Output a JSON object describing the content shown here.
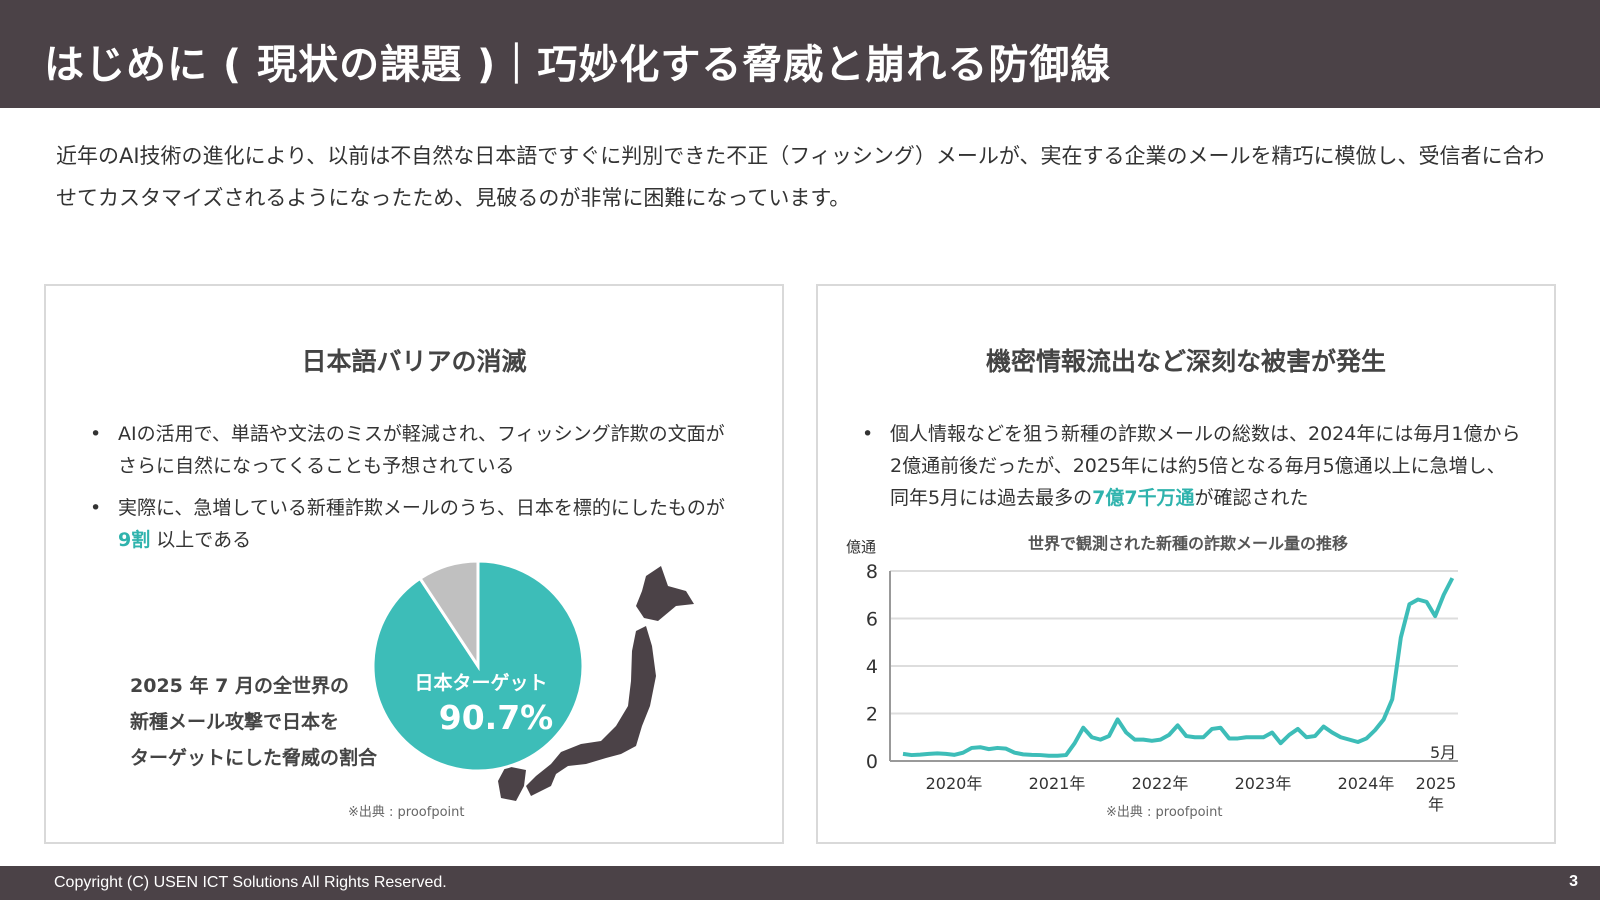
{
  "header": {
    "title": "はじめに ( 現状の課題 )｜巧妙化する脅威と崩れる防御線"
  },
  "intro": "近年のAI技術の進化により、以前は不自然な日本語ですぐに判別できた不正（フィッシング）メールが、実在する企業のメールを精巧に模倣し、受信者に合わせてカスタマイズされるようになったため、見破るのが非常に困難になっています。",
  "left": {
    "title": "日本語バリアの消滅",
    "bullet1": "AIの活用で、単語や文法のミスが軽減され、フィッシング詐欺の文面がさらに自然になってくることも予想されている",
    "bullet2_pre": "実際に、急増している新種詐欺メールのうち、日本を標的にしたものが ",
    "bullet2_hl": "9割",
    "bullet2_post": " 以上である",
    "caption": [
      "2025 年 7 月の全世界の",
      "新種メール攻撃で日本を",
      "ターゲットにした脅威の割合"
    ],
    "source": "※出典 : proofpoint"
  },
  "right": {
    "title": "機密情報流出など深刻な被害が発生",
    "bullet_pre": "個人情報などを狙う新種の詐欺メールの総数は、2024年には毎月1億から2億通前後だったが、2025年には約5倍となる毎月5億通以上に急増し、同年5月には過去最多の",
    "bullet_hl": "7億7千万通",
    "bullet_post": "が確認された",
    "source": "※出典 : proofpoint"
  },
  "colors": {
    "header": "#4b4247",
    "accent": "#3dbdb8",
    "other": "#c0c0c0",
    "map": "#4b4247"
  },
  "chart_data": [
    {
      "type": "pie",
      "slices": [
        {
          "label": "日本ターゲット",
          "value": 90.7,
          "display": "90.7%"
        },
        {
          "label": "",
          "value": 9.3
        }
      ]
    },
    {
      "type": "line",
      "title": "世界で観測された新種の詐欺メール量の推移",
      "ylabel": "億通",
      "ylim": [
        0,
        8
      ],
      "yticks": [
        "0",
        "2",
        "4",
        "6",
        "8"
      ],
      "xticks": [
        "2020年",
        "2021年",
        "2022年",
        "2023年",
        "2024年",
        "2025年"
      ],
      "annotation": "5月",
      "grid": true,
      "x_start": "2020-01",
      "x_end": "2025-05",
      "values": [
        0.3,
        0.25,
        0.27,
        0.3,
        0.32,
        0.3,
        0.26,
        0.35,
        0.55,
        0.58,
        0.5,
        0.55,
        0.52,
        0.35,
        0.28,
        0.26,
        0.25,
        0.22,
        0.22,
        0.25,
        0.75,
        1.4,
        1.0,
        0.9,
        1.05,
        1.75,
        1.2,
        0.9,
        0.9,
        0.85,
        0.9,
        1.1,
        1.5,
        1.05,
        1.0,
        1.0,
        1.35,
        1.4,
        0.95,
        0.95,
        1.0,
        1.0,
        1.0,
        1.2,
        0.75,
        1.1,
        1.35,
        1.0,
        1.05,
        1.45,
        1.2,
        1.0,
        0.9,
        0.8,
        0.95,
        1.3,
        1.75,
        2.6,
        5.2,
        6.6,
        6.8,
        6.7,
        6.1,
        7.0,
        7.7
      ]
    }
  ]
}
